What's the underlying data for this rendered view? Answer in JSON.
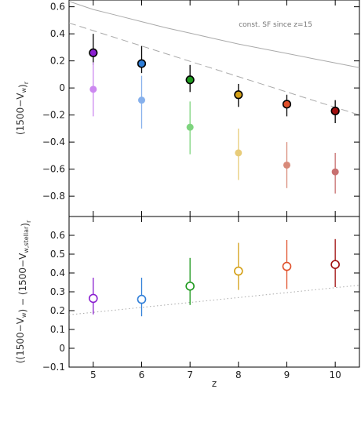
{
  "chart_data": [
    {
      "type": "scatter",
      "panel": "top",
      "ylabel": "(1500−V_w)_r",
      "xlim": [
        4.5,
        10.5
      ],
      "ylim": [
        -0.95,
        0.65
      ],
      "x_ticks": [
        5,
        6,
        7,
        8,
        9,
        10
      ],
      "y_ticks": [
        -0.8,
        -0.6,
        -0.4,
        -0.2,
        0,
        0.2,
        0.4,
        0.6
      ],
      "y_tick_labels": [
        "−0.8",
        "−0.6",
        "−0.4",
        "−0.2",
        "0",
        "0.2",
        "0.4",
        "0.6"
      ],
      "annotation": "const. SF since z=15",
      "series": [
        {
          "marker": "filled-circle-outlined",
          "x": [
            5,
            6,
            7,
            8,
            9,
            10
          ],
          "y": [
            0.26,
            0.18,
            0.06,
            -0.05,
            -0.12,
            -0.17
          ],
          "err_low": [
            0.09,
            0.07,
            0.09,
            0.09,
            0.09,
            0.09
          ],
          "err_high": [
            0.14,
            0.13,
            0.11,
            0.08,
            0.07,
            0.08
          ],
          "colors": [
            "#8a1fd0",
            "#2f7ed8",
            "#1f9a1f",
            "#d4a017",
            "#e0502a",
            "#a01010"
          ],
          "err_color": "#000000"
        },
        {
          "marker": "filled-circle-light",
          "x": [
            5,
            6,
            7,
            8,
            9,
            10
          ],
          "y": [
            -0.01,
            -0.09,
            -0.29,
            -0.48,
            -0.57,
            -0.62
          ],
          "err_low": [
            0.2,
            0.21,
            0.2,
            0.2,
            0.17,
            0.16
          ],
          "err_high": [
            0.2,
            0.18,
            0.19,
            0.18,
            0.17,
            0.14
          ],
          "colors": [
            "#cc88f0",
            "#86b0ec",
            "#7ed47e",
            "#e8cc7a",
            "#d88a7a",
            "#c87070"
          ]
        }
      ],
      "lines": [
        {
          "style": "solid",
          "color": "#aaaaaa",
          "x": [
            4.5,
            5,
            5.5,
            6,
            6.5,
            7,
            7.5,
            8,
            8.5,
            9,
            9.5,
            10,
            10.5
          ],
          "y": [
            0.64,
            0.58,
            0.535,
            0.49,
            0.445,
            0.405,
            0.365,
            0.325,
            0.29,
            0.255,
            0.22,
            0.185,
            0.15
          ]
        },
        {
          "style": "dashed",
          "color": "#aaaaaa",
          "x": [
            4.5,
            10.5
          ],
          "y": [
            0.48,
            -0.2
          ]
        }
      ]
    },
    {
      "type": "scatter",
      "panel": "bottom",
      "xlabel": "z",
      "ylabel": "((1500−V_w) − (1500−V_w,stellar)_r",
      "xlim": [
        4.5,
        10.5
      ],
      "ylim": [
        -0.1,
        0.7
      ],
      "x_ticks": [
        5,
        6,
        7,
        8,
        9,
        10
      ],
      "y_ticks": [
        -0.1,
        0,
        0.1,
        0.2,
        0.3,
        0.4,
        0.5,
        0.6
      ],
      "y_tick_labels": [
        "−0.1",
        "0",
        "0.1",
        "0.2",
        "0.3",
        "0.4",
        "0.5",
        "0.6"
      ],
      "series": [
        {
          "marker": "open-circle",
          "x": [
            5,
            6,
            7,
            8,
            9,
            10
          ],
          "y": [
            0.265,
            0.26,
            0.33,
            0.41,
            0.435,
            0.445
          ],
          "err_low": [
            0.085,
            0.09,
            0.1,
            0.1,
            0.12,
            0.12
          ],
          "err_high": [
            0.11,
            0.115,
            0.15,
            0.15,
            0.14,
            0.135
          ],
          "colors": [
            "#8a1fd0",
            "#2f7ed8",
            "#1f9a1f",
            "#d4a017",
            "#e0502a",
            "#a01010"
          ]
        }
      ],
      "lines": [
        {
          "style": "dotted",
          "color": "#aaaaaa",
          "x": [
            4.5,
            10.5
          ],
          "y": [
            0.178,
            0.335
          ]
        }
      ]
    }
  ]
}
